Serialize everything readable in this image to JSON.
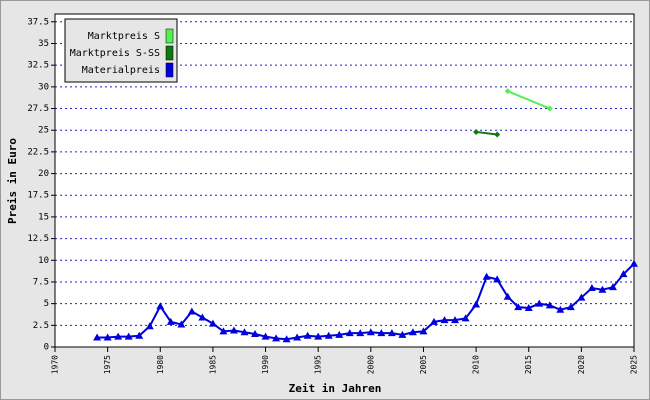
{
  "chart_data": {
    "type": "line",
    "y_label": "Preis in Euro",
    "x_label": "Zeit in Jahren",
    "xlim": [
      1970,
      2025
    ],
    "ylim": [
      0,
      38.4
    ],
    "xticks": [
      1970,
      1975,
      1980,
      1985,
      1990,
      1995,
      2000,
      2005,
      2010,
      2015,
      2020,
      2025
    ],
    "yticks": [
      0,
      2.5,
      5,
      7.5,
      10,
      12.5,
      15,
      17.5,
      20,
      22.5,
      25,
      27.5,
      30,
      32.5,
      35,
      37.5
    ],
    "grid": true,
    "legend": "top-left",
    "series": [
      {
        "name": "Marktpreis S",
        "color": "#55ee55",
        "x": [
          2013,
          2017
        ],
        "values": [
          29.5,
          27.5
        ]
      },
      {
        "name": "Marktpreis S-SS",
        "color": "#117711",
        "x": [
          2010,
          2012
        ],
        "values": [
          24.8,
          24.5
        ]
      },
      {
        "name": "Materialpreis",
        "color": "#0000dd",
        "x": [
          1974,
          1975,
          1976,
          1977,
          1978,
          1979,
          1980,
          1981,
          1982,
          1983,
          1984,
          1985,
          1986,
          1987,
          1988,
          1989,
          1990,
          1991,
          1992,
          1993,
          1994,
          1995,
          1996,
          1997,
          1998,
          1999,
          2000,
          2001,
          2002,
          2003,
          2004,
          2005,
          2006,
          2007,
          2008,
          2009,
          2010,
          2011,
          2012,
          2013,
          2014,
          2015,
          2016,
          2017,
          2018,
          2019,
          2020,
          2021,
          2022,
          2023,
          2024,
          2025
        ],
        "values": [
          1.1,
          1.1,
          1.2,
          1.2,
          1.3,
          2.4,
          4.7,
          2.9,
          2.6,
          4.1,
          3.4,
          2.7,
          1.8,
          1.9,
          1.7,
          1.5,
          1.2,
          1.0,
          0.9,
          1.1,
          1.3,
          1.2,
          1.3,
          1.4,
          1.6,
          1.6,
          1.7,
          1.6,
          1.6,
          1.4,
          1.7,
          1.8,
          2.9,
          3.1,
          3.1,
          3.3,
          4.9,
          8.1,
          7.8,
          5.8,
          4.6,
          4.5,
          5.0,
          4.8,
          4.3,
          4.6,
          5.7,
          6.8,
          6.6,
          6.9,
          8.4,
          9.6
        ]
      }
    ]
  }
}
